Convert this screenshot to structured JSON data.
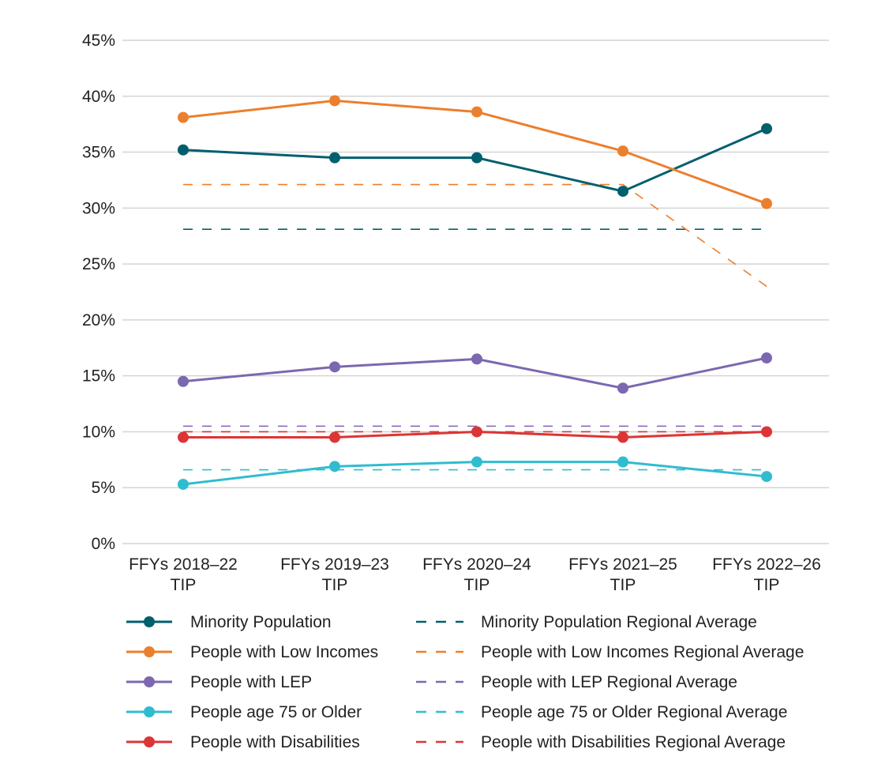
{
  "chart_data": {
    "type": "line",
    "title": "",
    "xlabel": "",
    "ylabel": "",
    "ylim": [
      0,
      45
    ],
    "y_ticks": [
      0,
      5,
      10,
      15,
      20,
      25,
      30,
      35,
      40,
      45
    ],
    "y_tick_format": "percent",
    "grid": true,
    "legend_placement": "bottom",
    "categories": [
      [
        "FFYs 2018–22",
        "TIP"
      ],
      [
        "FFYs 2019–23",
        "TIP"
      ],
      [
        "FFYs 2020–24",
        "TIP"
      ],
      [
        "FFYs 2021–25",
        "TIP"
      ],
      [
        "FFYs 2022–26",
        "TIP"
      ]
    ],
    "series": [
      {
        "name": "Minority Population",
        "color": "#005f6e",
        "style": "solid",
        "values": [
          35.2,
          34.5,
          34.5,
          31.5,
          37.1
        ]
      },
      {
        "name": "People with Low Incomes",
        "color": "#ec7f2d",
        "style": "solid",
        "values": [
          38.1,
          39.6,
          38.6,
          35.1,
          30.4
        ]
      },
      {
        "name": "People with LEP",
        "color": "#7b68b0",
        "style": "solid",
        "values": [
          14.5,
          15.8,
          16.5,
          13.9,
          16.6
        ]
      },
      {
        "name": "People age 75 or Older",
        "color": "#30bcd0",
        "style": "solid",
        "values": [
          5.3,
          6.9,
          7.3,
          7.3,
          6.0
        ]
      },
      {
        "name": "People with Disabilities",
        "color": "#dc3535",
        "style": "solid",
        "values": [
          9.5,
          9.5,
          10.0,
          9.5,
          10.0
        ]
      },
      {
        "name": "Minority Population Regional Average",
        "color": "#005f6e",
        "style": "dashed",
        "values": [
          28.1,
          28.1,
          28.1,
          28.1,
          28.1
        ]
      },
      {
        "name": "People with Low Incomes Regional Average",
        "color": "#ec7f2d",
        "style": "dashed",
        "values": [
          32.1,
          32.1,
          32.1,
          32.1,
          23.0
        ]
      },
      {
        "name": "People with LEP Regional Average",
        "color": "#7b68b0",
        "style": "dashed",
        "values": [
          10.5,
          10.5,
          10.5,
          10.5,
          10.5
        ]
      },
      {
        "name": "People age 75 or Older Regional Average",
        "color": "#30bcd0",
        "style": "dashed",
        "values": [
          6.6,
          6.6,
          6.6,
          6.6,
          6.6
        ]
      },
      {
        "name": "People with Disabilities Regional Average",
        "color": "#dc3535",
        "style": "dashed",
        "values": [
          10.0,
          10.0,
          10.0,
          10.0,
          10.0
        ]
      }
    ]
  }
}
